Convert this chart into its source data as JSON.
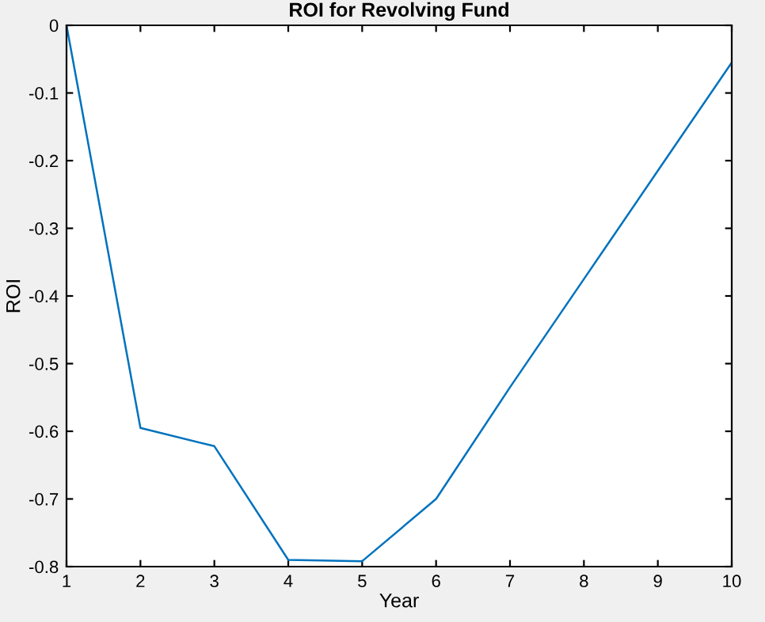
{
  "chart_data": {
    "type": "line",
    "title": "ROI for Revolving Fund",
    "xlabel": "Year",
    "ylabel": "ROI",
    "x": [
      1,
      2,
      3,
      4,
      5,
      6,
      7,
      8,
      9,
      10
    ],
    "series": [
      {
        "color": "#0072bd",
        "values": [
          0,
          -0.595,
          -0.622,
          -0.79,
          -0.792,
          -0.7,
          -0.535,
          -0.375,
          -0.215,
          -0.055
        ]
      }
    ],
    "xlim": [
      1,
      10
    ],
    "ylim": [
      -0.8,
      0
    ],
    "xticks": [
      1,
      2,
      3,
      4,
      5,
      6,
      7,
      8,
      9,
      10
    ],
    "yticks": [
      -0.8,
      -0.7,
      -0.6,
      -0.5,
      -0.4,
      -0.3,
      -0.2,
      -0.1,
      0
    ],
    "grid": false,
    "legend": false
  }
}
